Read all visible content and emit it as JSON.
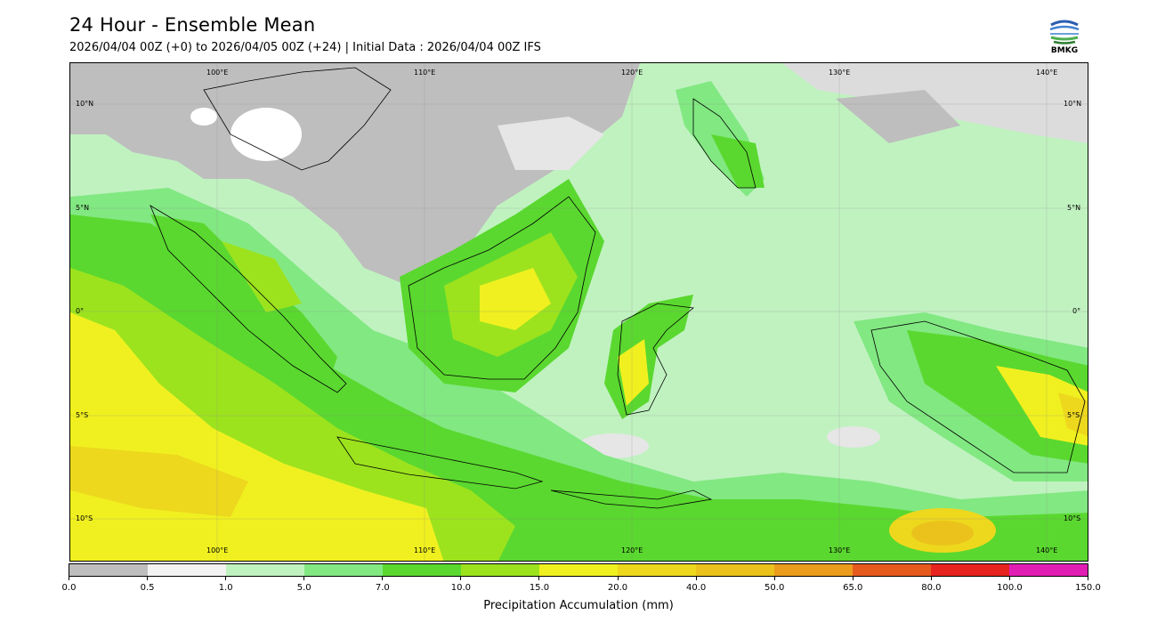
{
  "header": {
    "title": "24 Hour - Ensemble Mean",
    "subtitle": "2026/04/04 00Z (+0) to 2026/04/05 00Z (+24) | Initial Data : 2026/04/04 00Z IFS"
  },
  "logo": {
    "text": "BMKG",
    "icon": "bmkg-logo-icon"
  },
  "map": {
    "longitude_labels_top": [
      "100°E",
      "110°E",
      "120°E",
      "130°E",
      "140°E"
    ],
    "longitude_labels_bottom": [
      "100°E",
      "110°E",
      "120°E",
      "130°E",
      "140°E"
    ],
    "latitude_labels_left": [
      "10°N",
      "5°N",
      "0°",
      "5°S",
      "10°S"
    ],
    "latitude_labels_right": [
      "10°N",
      "5°N",
      "0°",
      "5°S",
      "10°S"
    ]
  },
  "colorbar": {
    "label": "Precipitation Accumulation (mm)",
    "ticks": [
      "0.0",
      "0.5",
      "1.0",
      "5.0",
      "7.0",
      "10.0",
      "15.0",
      "20.0",
      "40.0",
      "50.0",
      "65.0",
      "80.0",
      "100.0",
      "150.0"
    ],
    "colors": [
      "#bebebe",
      "#f2f2f2",
      "#c0f2c0",
      "#82e882",
      "#5ad82f",
      "#9ce31e",
      "#f0f020",
      "#edd81e",
      "#ebc21c",
      "#eb9c1c",
      "#e65a1e",
      "#e6231e",
      "#e11eb4"
    ]
  }
}
